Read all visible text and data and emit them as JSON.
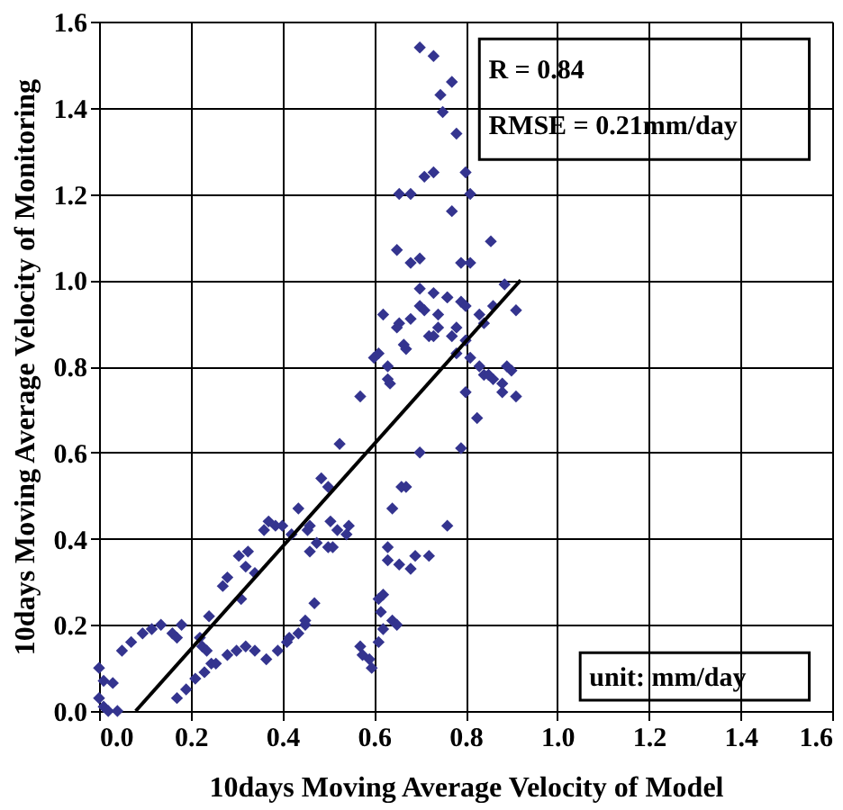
{
  "chart_data": {
    "type": "scatter",
    "xlabel": "10days Moving Average Velocity of Model",
    "ylabel": "10days Moving Average Velocity of Monitoring",
    "xlim": [
      0,
      1.6
    ],
    "ylim": [
      0,
      1.6
    ],
    "xticks": [
      {
        "value": 0,
        "label": "0.0"
      },
      0.2,
      0.4,
      0.6,
      0.8,
      {
        "value": 1,
        "label": "1.0"
      },
      1.2,
      1.4,
      1.6
    ],
    "yticks": [
      {
        "value": 0,
        "label": "0.0"
      },
      0.2,
      0.4,
      0.6,
      0.8,
      {
        "value": 1,
        "label": "1.0"
      },
      1.2,
      1.4,
      1.6
    ],
    "grid": true,
    "marker": "diamond",
    "annotations": [
      "R = 0.84",
      "RMSE = 0.21mm/day",
      "unit: mm/day"
    ],
    "series": [
      {
        "color": "#34348f",
        "x": [
          0.0,
          0.01,
          0.03,
          0.0,
          0.01,
          0.02,
          0.04,
          0.05,
          0.07,
          0.095,
          0.115,
          0.135,
          0.16,
          0.17,
          0.18,
          0.22,
          0.225,
          0.235,
          0.245,
          0.24,
          0.17,
          0.19,
          0.21,
          0.23,
          0.255,
          0.28,
          0.3,
          0.32,
          0.34,
          0.365,
          0.39,
          0.41,
          0.415,
          0.435,
          0.45,
          0.45,
          0.47,
          0.27,
          0.28,
          0.31,
          0.32,
          0.325,
          0.34,
          0.305,
          0.36,
          0.385,
          0.4,
          0.435,
          0.42,
          0.46,
          0.475,
          0.5,
          0.46,
          0.52,
          0.545,
          0.37,
          0.505,
          0.51,
          0.64,
          0.66,
          0.63,
          0.655,
          0.69,
          0.72,
          0.61,
          0.615,
          0.64,
          0.62,
          0.61,
          0.57,
          0.575,
          0.59,
          0.595,
          0.62,
          0.65,
          0.63,
          0.68,
          0.76,
          0.7,
          0.79,
          0.67,
          0.485,
          0.5,
          0.525,
          0.57,
          0.825,
          0.8,
          0.63,
          0.635,
          0.6,
          0.61,
          0.665,
          0.62,
          0.655,
          0.68,
          0.7,
          0.72,
          0.74,
          0.76,
          0.79,
          0.86,
          0.77,
          0.78,
          0.81,
          0.84,
          0.86,
          0.89,
          0.88,
          0.7,
          0.73,
          0.745,
          0.75,
          0.77,
          0.78,
          0.71,
          0.73,
          0.8,
          0.655,
          0.68,
          0.81,
          0.77,
          0.65,
          0.68,
          0.7,
          0.79,
          0.81,
          0.855,
          0.7,
          0.73,
          0.76,
          0.8,
          0.71,
          0.74,
          0.78,
          0.83,
          0.84,
          0.885,
          0.91,
          0.65,
          0.73,
          0.67,
          0.8,
          0.83,
          0.85,
          0.88,
          0.91,
          0.9,
          0.63,
          0.455,
          0.54
        ],
        "values": [
          0.1,
          0.07,
          0.065,
          0.03,
          0.01,
          0.0,
          0.0,
          0.14,
          0.16,
          0.18,
          0.19,
          0.2,
          0.18,
          0.17,
          0.2,
          0.17,
          0.15,
          0.14,
          0.11,
          0.22,
          0.03,
          0.05,
          0.075,
          0.09,
          0.11,
          0.13,
          0.14,
          0.15,
          0.14,
          0.12,
          0.14,
          0.16,
          0.17,
          0.18,
          0.2,
          0.21,
          0.25,
          0.29,
          0.31,
          0.26,
          0.335,
          0.37,
          0.32,
          0.36,
          0.42,
          0.43,
          0.43,
          0.47,
          0.41,
          0.43,
          0.39,
          0.38,
          0.37,
          0.42,
          0.43,
          0.44,
          0.44,
          0.38,
          0.47,
          0.52,
          0.38,
          0.34,
          0.36,
          0.36,
          0.26,
          0.23,
          0.21,
          0.19,
          0.16,
          0.15,
          0.13,
          0.12,
          0.1,
          0.27,
          0.2,
          0.35,
          0.33,
          0.43,
          0.6,
          0.61,
          0.52,
          0.54,
          0.52,
          0.62,
          0.73,
          0.68,
          0.74,
          0.77,
          0.76,
          0.82,
          0.83,
          0.85,
          0.92,
          0.9,
          0.91,
          0.94,
          0.87,
          0.89,
          0.96,
          0.95,
          0.94,
          0.87,
          0.83,
          0.82,
          0.78,
          0.77,
          0.8,
          0.74,
          1.54,
          1.52,
          1.43,
          1.39,
          1.46,
          1.34,
          1.24,
          1.25,
          1.25,
          1.2,
          1.2,
          1.2,
          1.16,
          1.07,
          1.04,
          1.05,
          1.04,
          1.04,
          1.09,
          0.98,
          0.97,
          0.96,
          0.94,
          0.93,
          0.92,
          0.89,
          0.92,
          0.9,
          0.99,
          0.93,
          0.89,
          0.87,
          0.84,
          0.86,
          0.8,
          0.78,
          0.76,
          0.73,
          0.79,
          0.8,
          0.42,
          0.41
        ]
      },
      {
        "type": "line",
        "color": "#000000",
        "marker": "none",
        "x": [
          0.08,
          0.92
        ],
        "values": [
          0.0,
          1.0
        ]
      }
    ]
  }
}
